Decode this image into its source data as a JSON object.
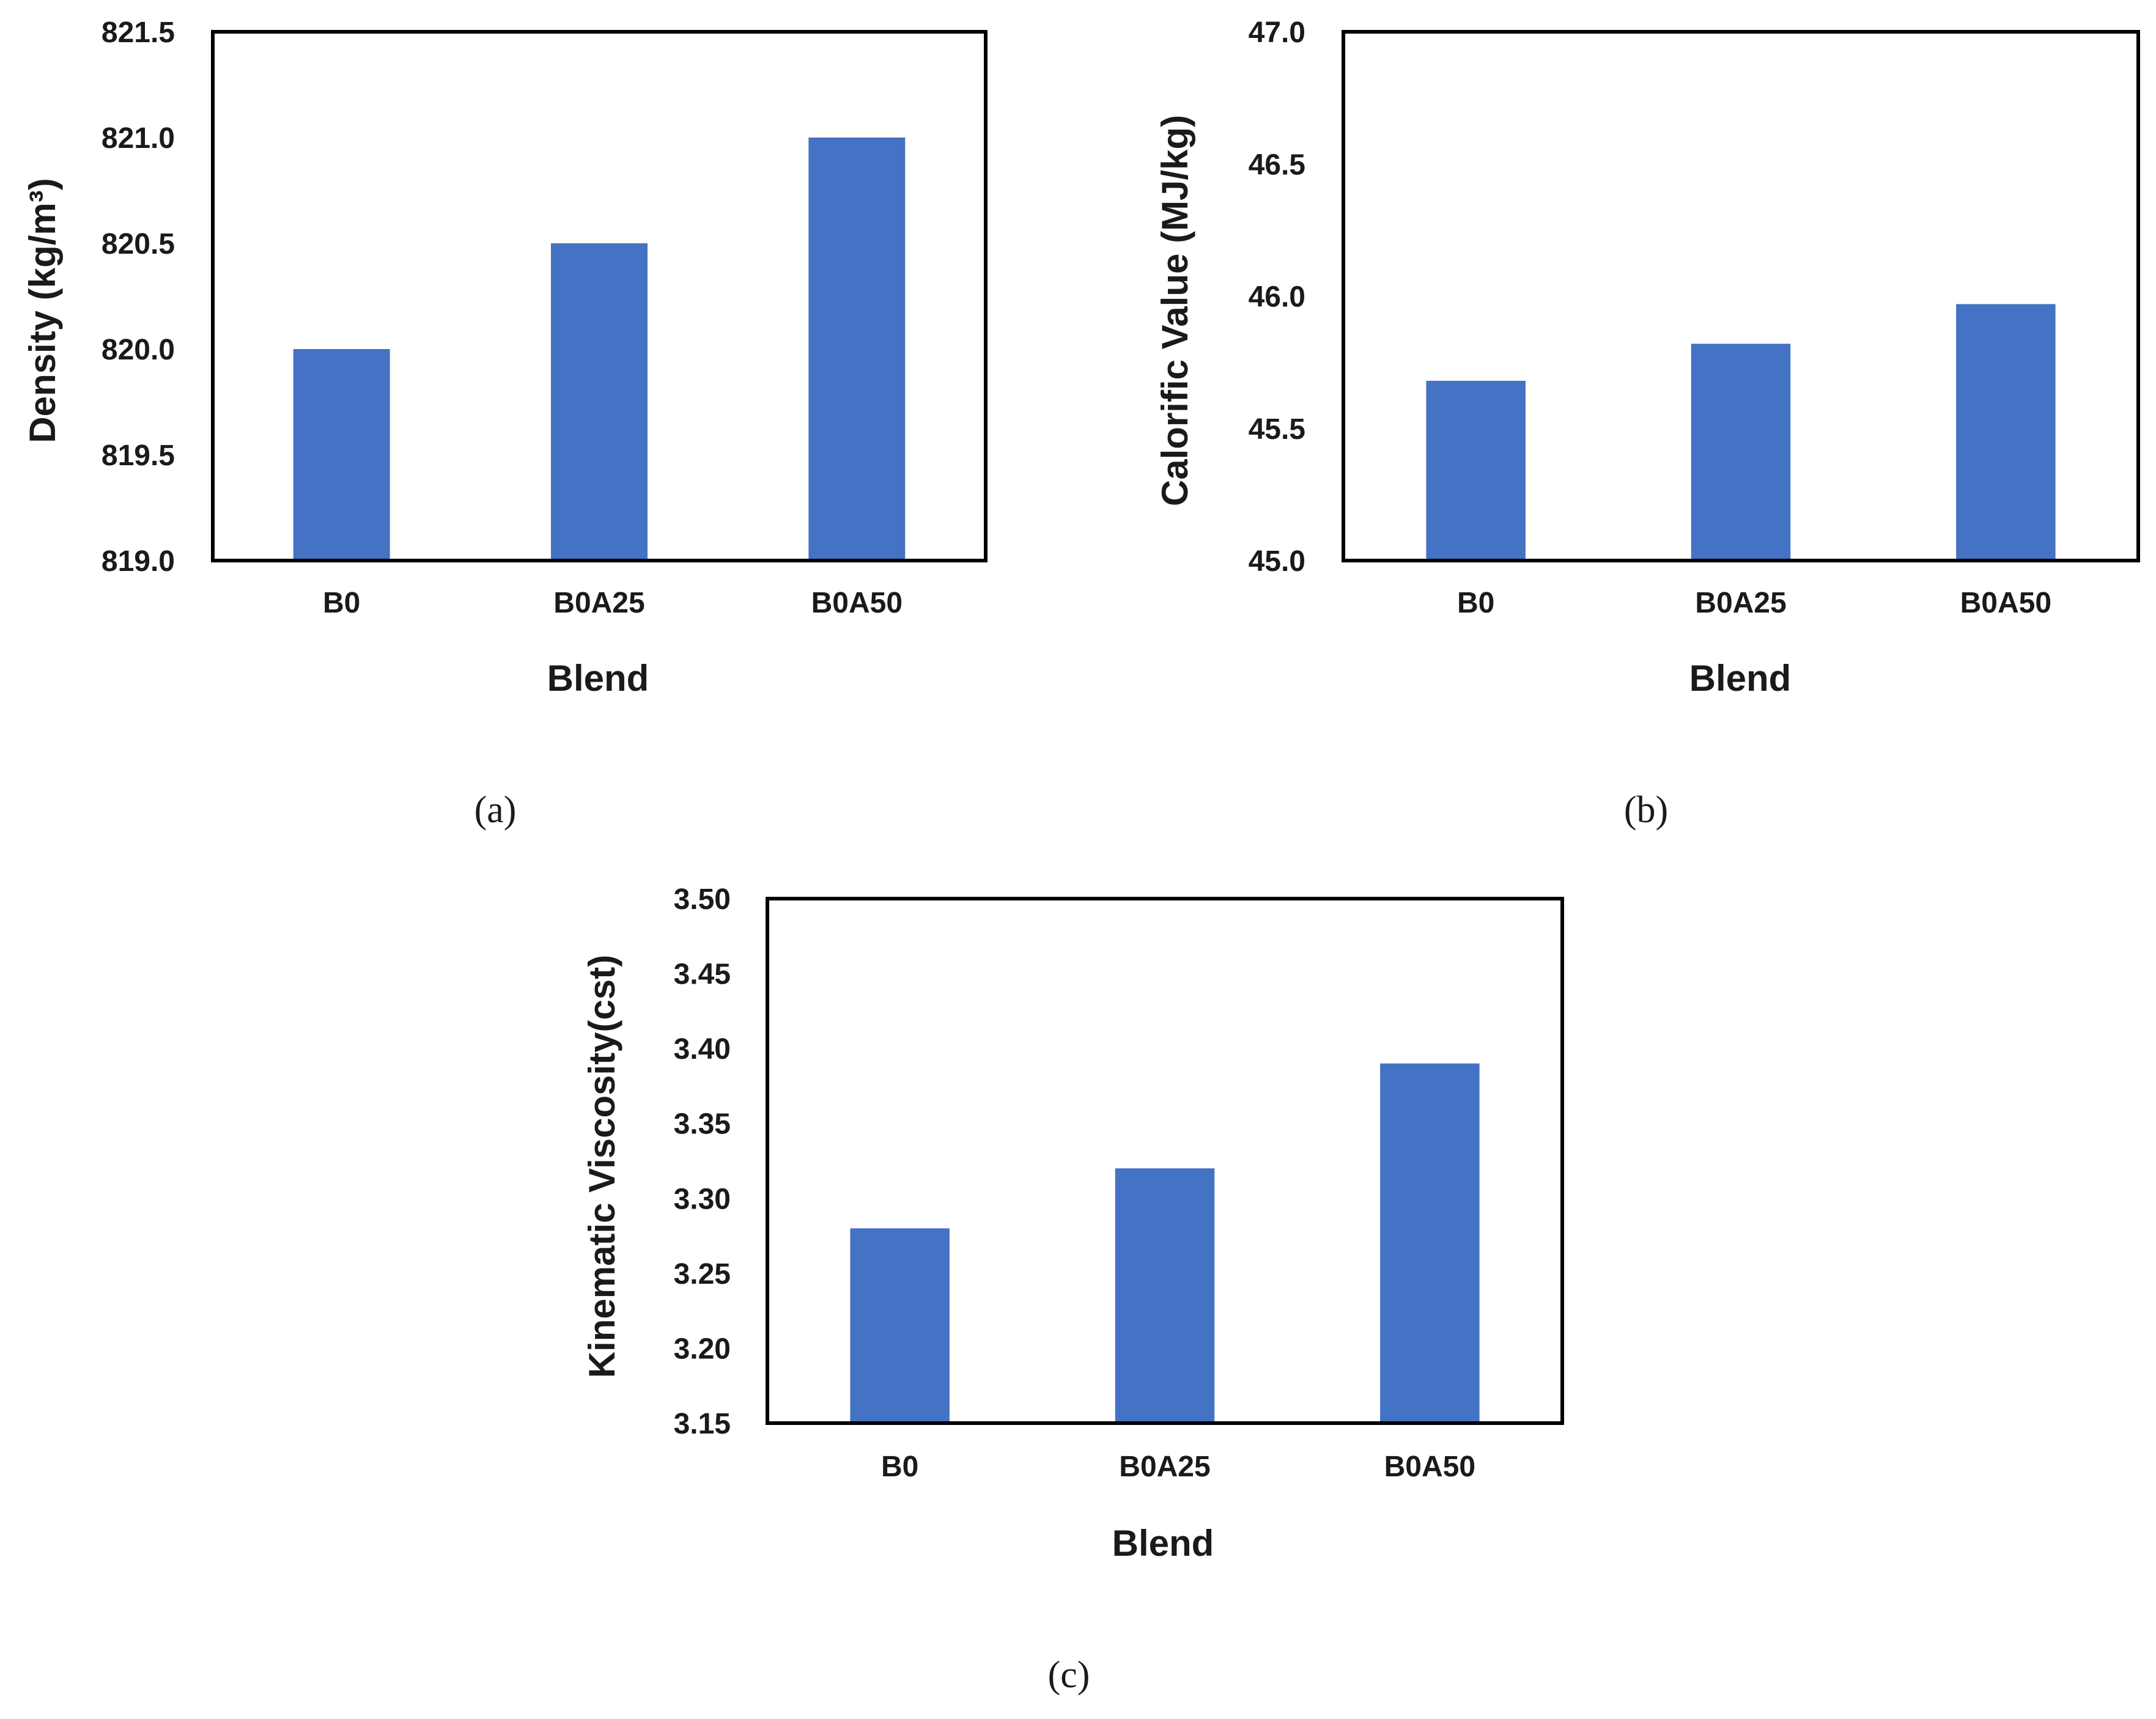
{
  "colors": {
    "bar": "#4472C4",
    "axis": "#000000",
    "text": "#1a1a1a"
  },
  "chart_data": [
    {
      "type": "bar",
      "panel_label": "(a)",
      "categories": [
        "B0",
        "B0A25",
        "B0A50"
      ],
      "values": [
        820.0,
        820.5,
        821.0
      ],
      "xlabel": "Blend",
      "ylabel": "Density (kg/m³)",
      "ylim": [
        819.0,
        821.5
      ],
      "yticks": [
        "819.0",
        "819.5",
        "820.0",
        "820.5",
        "821.0",
        "821.5"
      ],
      "grid": false
    },
    {
      "type": "bar",
      "panel_label": "(b)",
      "categories": [
        "B0",
        "B0A25",
        "B0A50"
      ],
      "values": [
        45.68,
        45.82,
        45.97
      ],
      "xlabel": "Blend",
      "ylabel": "Calorific Value (MJ/kg)",
      "ylim": [
        45.0,
        47.0
      ],
      "yticks": [
        "45.0",
        "45.5",
        "46.0",
        "46.5",
        "47.0"
      ],
      "grid": false
    },
    {
      "type": "bar",
      "panel_label": "(c)",
      "categories": [
        "B0",
        "B0A25",
        "B0A50"
      ],
      "values": [
        3.28,
        3.32,
        3.39
      ],
      "xlabel": "Blend",
      "ylabel": "Kinematic Viscosity(cst)",
      "ylim": [
        3.15,
        3.5
      ],
      "yticks": [
        "3.15",
        "3.20",
        "3.25",
        "3.30",
        "3.35",
        "3.40",
        "3.45",
        "3.50"
      ],
      "grid": false
    }
  ]
}
